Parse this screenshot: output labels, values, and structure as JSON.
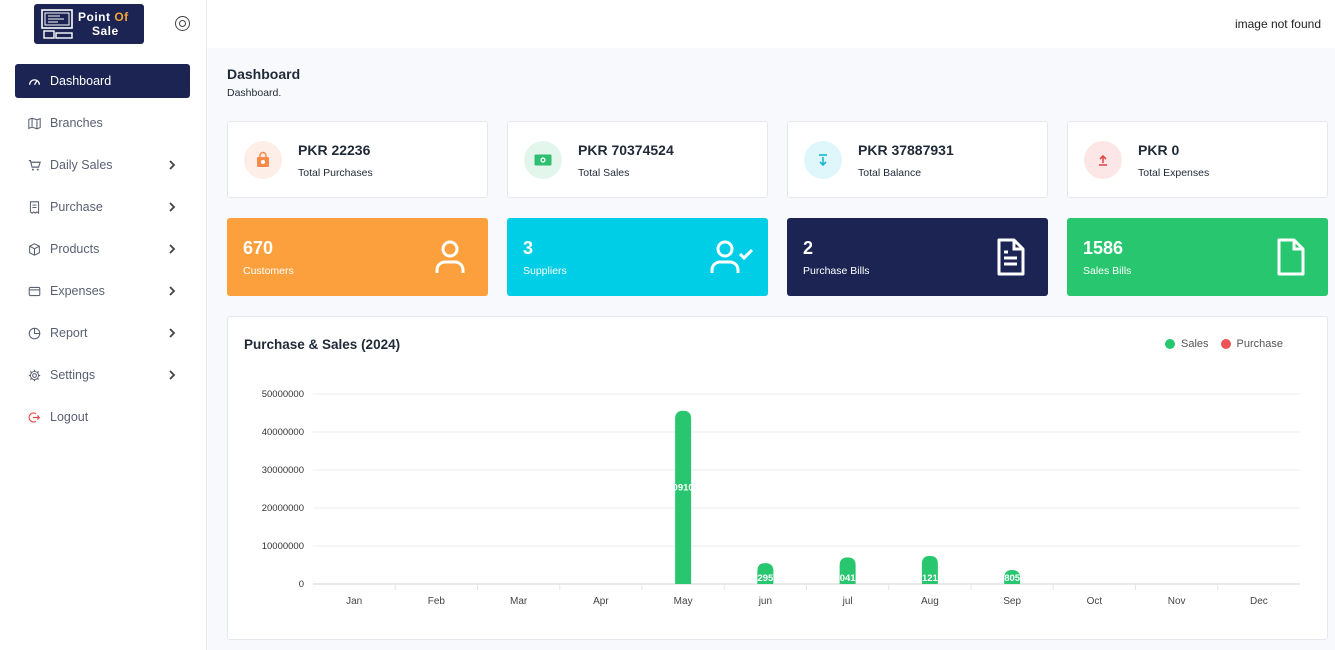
{
  "brand": {
    "line1_a": "Point",
    "line1_b": "Of",
    "line2": "Sale"
  },
  "topbar": {
    "image_alt": "image not found"
  },
  "sidebar": {
    "items": [
      {
        "label": "Dashboard",
        "icon": "gauge-icon",
        "active": true,
        "submenu": false
      },
      {
        "label": "Branches",
        "icon": "map-icon",
        "active": false,
        "submenu": false
      },
      {
        "label": "Daily Sales",
        "icon": "cart-icon",
        "active": false,
        "submenu": true
      },
      {
        "label": "Purchase",
        "icon": "receipt-icon",
        "active": false,
        "submenu": true
      },
      {
        "label": "Products",
        "icon": "box-icon",
        "active": false,
        "submenu": true
      },
      {
        "label": "Expenses",
        "icon": "wallet-icon",
        "active": false,
        "submenu": true
      },
      {
        "label": "Report",
        "icon": "pie-icon",
        "active": false,
        "submenu": true
      },
      {
        "label": "Settings",
        "icon": "gear-icon",
        "active": false,
        "submenu": true
      },
      {
        "label": "Logout",
        "icon": "logout-icon",
        "active": false,
        "submenu": false
      }
    ]
  },
  "page": {
    "title": "Dashboard",
    "breadcrumb": "Dashboard."
  },
  "stats": [
    {
      "value": "PKR 22236",
      "label": "Total Purchases",
      "icon": "bag-icon",
      "bg": "#fdeee8",
      "fg": "#f58a4b"
    },
    {
      "value": "PKR 70374524",
      "label": "Total Sales",
      "icon": "cash-icon",
      "bg": "#e3f6ec",
      "fg": "#2fbf71"
    },
    {
      "value": "PKR 37887931",
      "label": "Total Balance",
      "icon": "download-icon",
      "bg": "#dff7fb",
      "fg": "#19b8d0"
    },
    {
      "value": "PKR 0",
      "label": "Total Expenses",
      "icon": "upload-icon",
      "bg": "#fde6e6",
      "fg": "#e14b4b"
    }
  ],
  "counts": [
    {
      "value": "670",
      "label": "Customers",
      "icon": "user-icon",
      "bg": "#fca03d"
    },
    {
      "value": "3",
      "label": "Suppliers",
      "icon": "user-check-icon",
      "bg": "#00cde6"
    },
    {
      "value": "2",
      "label": "Purchase Bills",
      "icon": "file-text-icon",
      "bg": "#1b2452"
    },
    {
      "value": "1586",
      "label": "Sales Bills",
      "icon": "file-icon",
      "bg": "#28c76f"
    }
  ],
  "chart_data": {
    "type": "bar",
    "title": "Purchase & Sales (2024)",
    "categories": [
      "Jan",
      "Feb",
      "Mar",
      "Apr",
      "May",
      "jun",
      "jul",
      "Aug",
      "Sep",
      "Oct",
      "Nov",
      "Dec"
    ],
    "series": [
      {
        "name": "Sales",
        "color": "#28c76f",
        "values": [
          0,
          0,
          0,
          0,
          45600000,
          5500000,
          7000000,
          7400000,
          3700000,
          0,
          0,
          0
        ],
        "labels": [
          "",
          "",
          "",
          "",
          "0910",
          "295",
          "041",
          "121",
          "805",
          "",
          "",
          ""
        ]
      },
      {
        "name": "Purchase",
        "color": "#ea5455",
        "values": [
          0,
          0,
          0,
          0,
          0,
          0,
          0,
          0,
          0,
          0,
          0,
          0
        ],
        "labels": [
          "",
          "",
          "",
          "",
          "",
          "",
          "",
          "",
          "",
          "",
          "",
          ""
        ]
      }
    ],
    "y_ticks": [
      "0",
      "10000000",
      "20000000",
      "30000000",
      "40000000",
      "50000000"
    ],
    "ylim": [
      0,
      50000000
    ],
    "legend": "top-right",
    "grid": true
  }
}
